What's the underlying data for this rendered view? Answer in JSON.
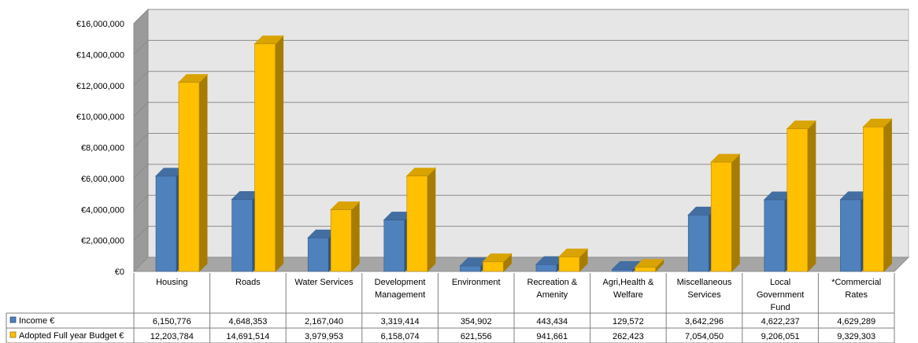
{
  "chart_data": {
    "type": "bar",
    "title": "",
    "xlabel": "",
    "ylabel": "",
    "ylim": [
      0,
      16000000
    ],
    "yticks": [
      "€0",
      "€2,000,000",
      "€4,000,000",
      "€6,000,000",
      "€8,000,000",
      "€10,000,000",
      "€12,000,000",
      "€14,000,000",
      "€16,000,000"
    ],
    "grid": true,
    "legend": "in data table, left",
    "categories": [
      [
        "Housing"
      ],
      [
        "Roads"
      ],
      [
        "Water Services"
      ],
      [
        "Development",
        "Management"
      ],
      [
        "Environment"
      ],
      [
        "Recreation &",
        "Amenity"
      ],
      [
        "Agri,Health &",
        "Welfare"
      ],
      [
        "Miscellaneous",
        "Services"
      ],
      [
        "Local",
        "Government",
        "Fund"
      ],
      [
        "*Commercial",
        "Rates"
      ]
    ],
    "series": [
      {
        "name": "Income €",
        "color": "#4F81BD",
        "values": [
          6150776,
          4648353,
          2167040,
          3319414,
          354902,
          443434,
          129572,
          3642296,
          4622237,
          4629289
        ],
        "labels": [
          "6,150,776",
          "4,648,353",
          "2,167,040",
          "3,319,414",
          "354,902",
          "443,434",
          "129,572",
          "3,642,296",
          "4,622,237",
          "4,629,289"
        ]
      },
      {
        "name": "Adopted Full year Budget €",
        "color": "#FFC000",
        "values": [
          12203784,
          14691514,
          3979953,
          6158074,
          621556,
          941661,
          262423,
          7054050,
          9206051,
          9329303
        ],
        "labels": [
          "12,203,784",
          "14,691,514",
          "3,979,953",
          "6,158,074",
          "621,556",
          "941,661",
          "262,423",
          "7,054,050",
          "9,206,051",
          "9,329,303"
        ]
      }
    ]
  }
}
